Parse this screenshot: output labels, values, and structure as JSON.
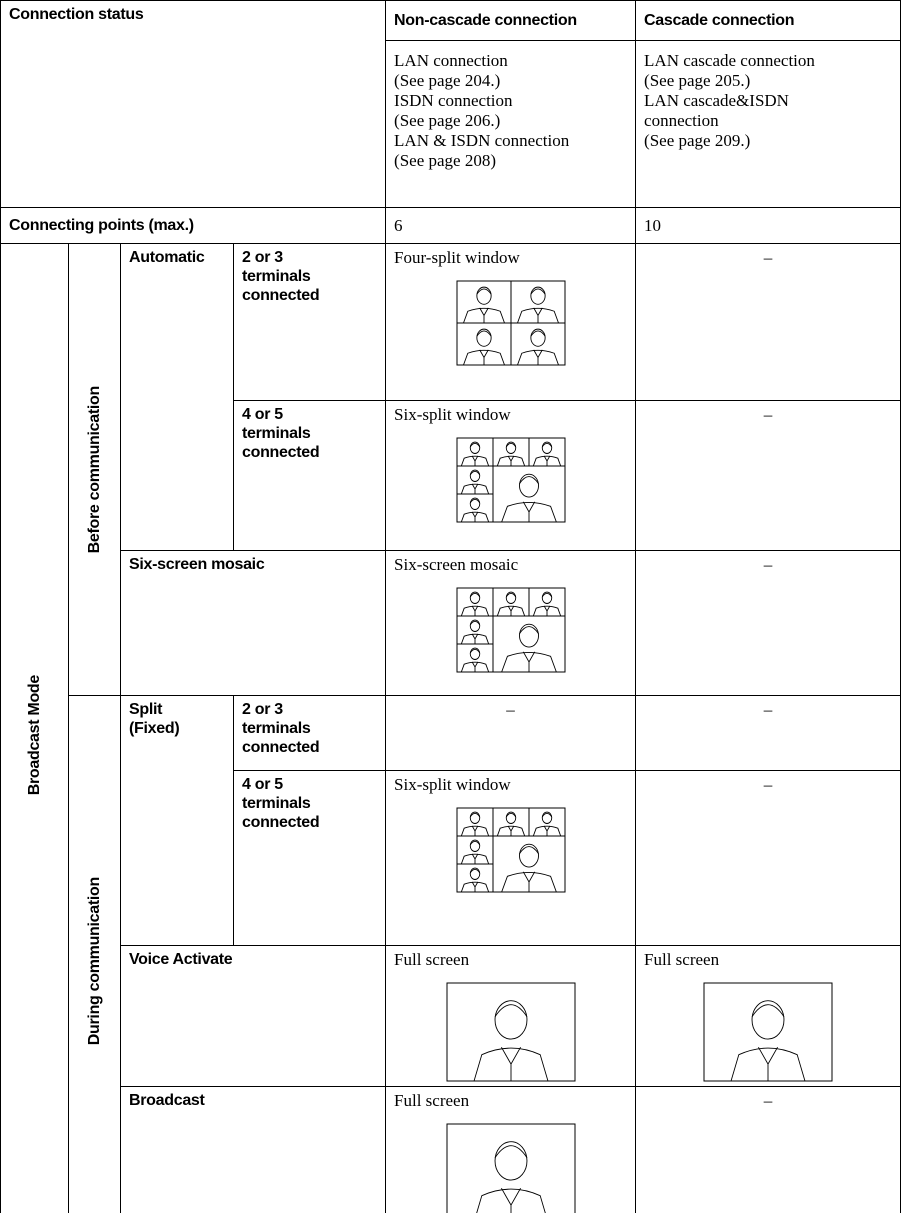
{
  "header": {
    "connection_status": "Connection status",
    "non_cascade": "Non-cascade connection",
    "cascade": "Cascade connection"
  },
  "connections": {
    "non_cascade": [
      "LAN connection",
      "(See page 204.)",
      "ISDN connection",
      "(See page 206.)",
      "LAN & ISDN connection",
      "(See page 208)"
    ],
    "cascade": [
      "LAN cascade connection",
      "(See page 205.)",
      "LAN cascade&ISDN",
      "connection",
      "(See page 209.)"
    ]
  },
  "connecting_points": {
    "label": "Connecting points (max.)",
    "non_cascade": 6,
    "cascade": 10
  },
  "broadcast_mode": "Broadcast Mode",
  "phases": [
    {
      "label": "Before communication",
      "groups": [
        {
          "setting": "Automatic",
          "rows": [
            {
              "condition": "2 or 3 terminals connected",
              "non_cascade": "Four-split window",
              "cascade": "–"
            },
            {
              "condition": "4 or 5 terminals connected",
              "non_cascade": "Six-split window",
              "cascade": "–"
            }
          ]
        },
        {
          "setting": "Six-screen mosaic",
          "rows": [
            {
              "non_cascade": "Six-screen mosaic",
              "cascade": "–"
            }
          ]
        }
      ]
    },
    {
      "label": "During communication",
      "groups": [
        {
          "setting": "Split (Fixed)",
          "rows": [
            {
              "condition": "2 or 3 terminals connected",
              "non_cascade": "–",
              "cascade": "–"
            },
            {
              "condition": "4 or 5 terminals connected",
              "non_cascade": "Six-split window",
              "cascade": "–"
            }
          ]
        },
        {
          "setting": "Voice Activate",
          "rows": [
            {
              "non_cascade": "Full screen",
              "cascade": "Full screen"
            }
          ]
        },
        {
          "setting": "Broadcast",
          "rows": [
            {
              "non_cascade": "Full screen",
              "cascade": "–"
            }
          ]
        }
      ]
    }
  ]
}
